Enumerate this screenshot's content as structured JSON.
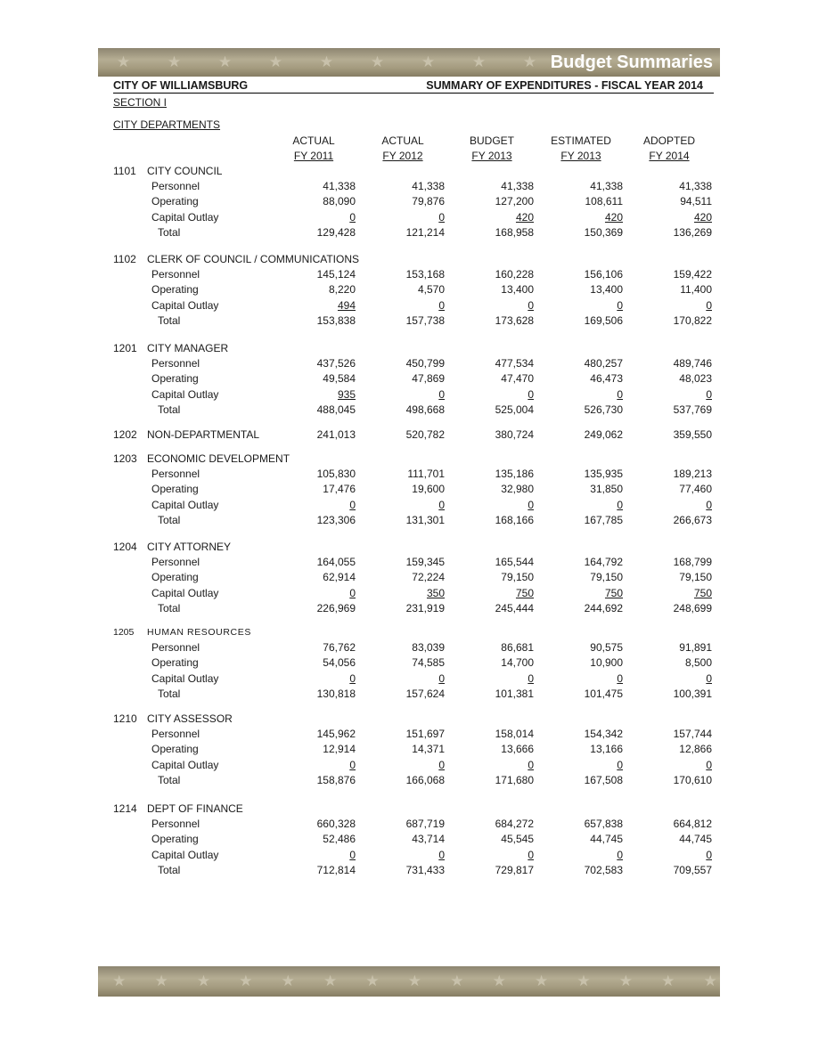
{
  "banner": {
    "title": "Budget Summaries"
  },
  "header": {
    "left": "CITY OF WILLIAMSBURG",
    "right": "SUMMARY OF EXPENDITURES -  FISCAL YEAR 2014"
  },
  "section": "SECTION I",
  "subsection": "CITY DEPARTMENTS",
  "columns": [
    {
      "top": "ACTUAL",
      "bottom": "FY 2011"
    },
    {
      "top": "ACTUAL",
      "bottom": "FY 2012"
    },
    {
      "top": "BUDGET",
      "bottom": "FY 2013"
    },
    {
      "top": "ESTIMATED",
      "bottom": "FY 2013"
    },
    {
      "top": "ADOPTED",
      "bottom": "FY 2014"
    }
  ],
  "departments": [
    {
      "code": "1101",
      "name": "CITY COUNCIL",
      "rows": [
        {
          "label": "Personnel",
          "values": [
            "41,338",
            "41,338",
            "41,338",
            "41,338",
            "41,338"
          ]
        },
        {
          "label": "Operating",
          "values": [
            "88,090",
            "79,876",
            "127,200",
            "108,611",
            "94,511"
          ]
        },
        {
          "label": "Capital Outlay",
          "values": [
            "0",
            "0",
            "420",
            "420",
            "420"
          ]
        },
        {
          "label": "Total",
          "values": [
            "129,428",
            "121,214",
            "168,958",
            "150,369",
            "136,269"
          ]
        }
      ]
    },
    {
      "code": "1102",
      "name": "CLERK OF COUNCIL / COMMUNICATIONS",
      "rows": [
        {
          "label": "Personnel",
          "values": [
            "145,124",
            "153,168",
            "160,228",
            "156,106",
            "159,422"
          ]
        },
        {
          "label": "Operating",
          "values": [
            "8,220",
            "4,570",
            "13,400",
            "13,400",
            "11,400"
          ]
        },
        {
          "label": "Capital Outlay",
          "values": [
            "494",
            "0",
            "0",
            "0",
            "0"
          ]
        },
        {
          "label": "Total",
          "values": [
            "153,838",
            "157,738",
            "173,628",
            "169,506",
            "170,822"
          ]
        }
      ]
    },
    {
      "code": "1201",
      "name": "CITY MANAGER",
      "rows": [
        {
          "label": "Personnel",
          "values": [
            "437,526",
            "450,799",
            "477,534",
            "480,257",
            "489,746"
          ]
        },
        {
          "label": "Operating",
          "values": [
            "49,584",
            "47,869",
            "47,470",
            "46,473",
            "48,023"
          ]
        },
        {
          "label": "Capital Outlay",
          "values": [
            "935",
            "0",
            "0",
            "0",
            "0"
          ]
        },
        {
          "label": "Total",
          "values": [
            "488,045",
            "498,668",
            "525,004",
            "526,730",
            "537,769"
          ]
        }
      ]
    },
    {
      "code": "1202",
      "name": "NON-DEPARTMENTAL",
      "values": [
        "241,013",
        "520,782",
        "380,724",
        "249,062",
        "359,550"
      ]
    },
    {
      "code": "1203",
      "name": "ECONOMIC DEVELOPMENT",
      "rows": [
        {
          "label": "Personnel",
          "values": [
            "105,830",
            "111,701",
            "135,186",
            "135,935",
            "189,213"
          ]
        },
        {
          "label": "Operating",
          "values": [
            "17,476",
            "19,600",
            "32,980",
            "31,850",
            "77,460"
          ]
        },
        {
          "label": "Capital Outlay",
          "values": [
            "0",
            "0",
            "0",
            "0",
            "0"
          ]
        },
        {
          "label": "Total",
          "values": [
            "123,306",
            "131,301",
            "168,166",
            "167,785",
            "266,673"
          ]
        }
      ]
    },
    {
      "code": "1204",
      "name": "CITY ATTORNEY",
      "rows": [
        {
          "label": "Personnel",
          "values": [
            "164,055",
            "159,345",
            "165,544",
            "164,792",
            "168,799"
          ]
        },
        {
          "label": "Operating",
          "values": [
            "62,914",
            "72,224",
            "79,150",
            "79,150",
            "79,150"
          ]
        },
        {
          "label": "Capital Outlay",
          "values": [
            "0",
            "350",
            "750",
            "750",
            "750"
          ]
        },
        {
          "label": "Total",
          "values": [
            "226,969",
            "231,919",
            "245,444",
            "244,692",
            "248,699"
          ]
        }
      ]
    },
    {
      "code": "1205",
      "name": "HUMAN RESOURCES",
      "rows": [
        {
          "label": "Personnel",
          "values": [
            "76,762",
            "83,039",
            "86,681",
            "90,575",
            "91,891"
          ]
        },
        {
          "label": "Operating",
          "values": [
            "54,056",
            "74,585",
            "14,700",
            "10,900",
            "8,500"
          ]
        },
        {
          "label": "Capital Outlay",
          "values": [
            "0",
            "0",
            "0",
            "0",
            "0"
          ]
        },
        {
          "label": "Total",
          "values": [
            "130,818",
            "157,624",
            "101,381",
            "101,475",
            "100,391"
          ]
        }
      ]
    },
    {
      "code": "1210",
      "name": "CITY ASSESSOR",
      "rows": [
        {
          "label": "Personnel",
          "values": [
            "145,962",
            "151,697",
            "158,014",
            "154,342",
            "157,744"
          ]
        },
        {
          "label": "Operating",
          "values": [
            "12,914",
            "14,371",
            "13,666",
            "13,166",
            "12,866"
          ]
        },
        {
          "label": "Capital Outlay",
          "values": [
            "0",
            "0",
            "0",
            "0",
            "0"
          ]
        },
        {
          "label": "Total",
          "values": [
            "158,876",
            "166,068",
            "171,680",
            "167,508",
            "170,610"
          ]
        }
      ]
    },
    {
      "code": "1214",
      "name": "DEPT OF FINANCE",
      "rows": [
        {
          "label": "Personnel",
          "values": [
            "660,328",
            "687,719",
            "684,272",
            "657,838",
            "664,812"
          ]
        },
        {
          "label": "Operating",
          "values": [
            "52,486",
            "43,714",
            "45,545",
            "44,745",
            "44,745"
          ]
        },
        {
          "label": "Capital Outlay",
          "values": [
            "0",
            "0",
            "0",
            "0",
            "0"
          ]
        },
        {
          "label": "Total",
          "values": [
            "712,814",
            "731,433",
            "729,817",
            "702,583",
            "709,557"
          ]
        }
      ]
    }
  ]
}
